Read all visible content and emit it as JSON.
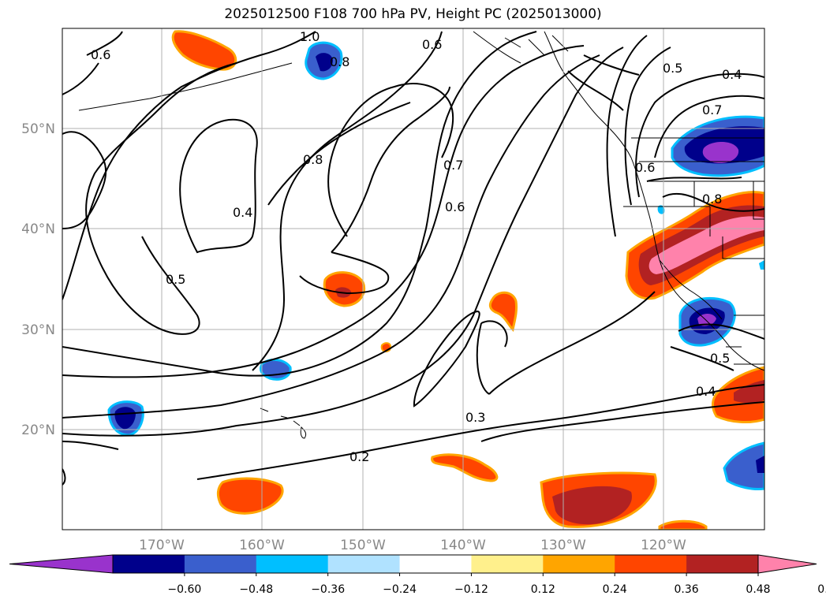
{
  "title": "2025012500 F108 700 hPa PV, Height PC (2025013000)",
  "map": {
    "lon_labels": [
      "170°W",
      "160°W",
      "150°W",
      "140°W",
      "130°W",
      "120°W"
    ],
    "lat_labels": [
      "50°N",
      "40°N",
      "30°N",
      "20°N"
    ],
    "contour_labels": [
      "1.0",
      "0.8",
      "0.6",
      "0.5",
      "0.4",
      "0.7",
      "0.5",
      "0.4",
      "0.8",
      "0.6",
      "0.7",
      "0.6",
      "0.4",
      "0.5",
      "0.3",
      "0.2",
      "0.4",
      "0.6"
    ]
  },
  "colorbar": {
    "ticks": [
      "−0.60",
      "−0.48",
      "−0.36",
      "−0.24",
      "−0.12",
      "0.12",
      "0.24",
      "0.36",
      "0.48",
      "0.60"
    ],
    "colors": [
      "#9933cc",
      "#00008b",
      "#3a5fcd",
      "#00bfff",
      "#b0e2ff",
      "#ffffff",
      "#fff08c",
      "#ffa500",
      "#ff4500",
      "#b22222",
      "#ff82ab"
    ]
  }
}
